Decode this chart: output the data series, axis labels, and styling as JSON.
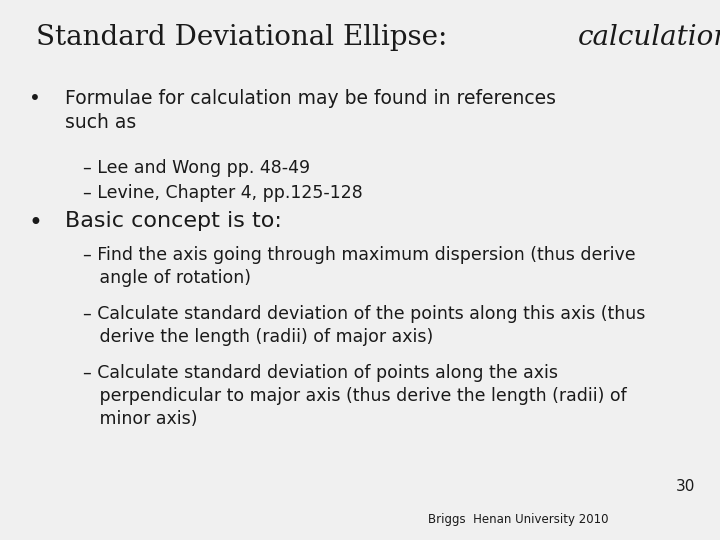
{
  "background_color": "#f0f0f0",
  "title_normal": "Standard Deviational Ellipse: ",
  "title_italic": "calculation",
  "title_fontsize": 20,
  "title_font": "serif",
  "page_number": "30",
  "footer": "Briggs  Henan University 2010",
  "bullet1": "Formulae for calculation may be found in references\nsuch as",
  "sub1a": "– Lee and Wong pp. 48-49",
  "sub1b": "– Levine, Chapter 4, pp.125-128",
  "bullet2": "Basic concept is to:",
  "sub2a": "– Find the axis going through maximum dispersion (thus derive\n   angle of rotation)",
  "sub2b": "– Calculate standard deviation of the points along this axis (thus\n   derive the length (radii) of major axis)",
  "sub2c": "– Calculate standard deviation of points along the axis\n   perpendicular to major axis (thus derive the length (radii) of\n   minor axis)",
  "text_color": "#1a1a1a",
  "body_fontsize": 13.5,
  "sub_fontsize": 12.5,
  "bullet2_fontsize": 16
}
